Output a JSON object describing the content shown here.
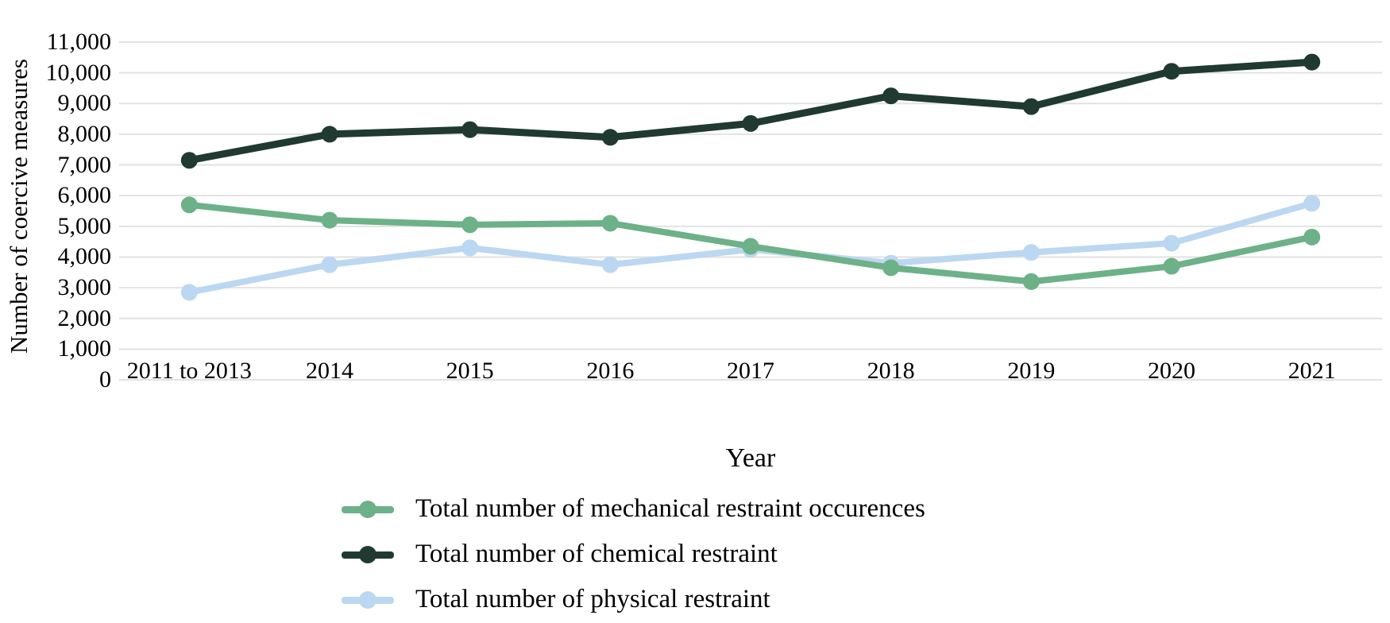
{
  "figure": {
    "background": "#ffffff",
    "gridline_color": "#e2e2e2"
  },
  "chart_data": {
    "type": "line",
    "title": "",
    "xlabel": "Year",
    "ylabel": "Number of coercive measures",
    "categories": [
      "2011 to 2013",
      "2014",
      "2015",
      "2016",
      "2017",
      "2018",
      "2019",
      "2020",
      "2021"
    ],
    "series": [
      {
        "name": "Total number of mechanical restraint occurences",
        "color": "#6db188",
        "values": [
          5700,
          5200,
          5050,
          5100,
          4350,
          3650,
          3200,
          3700,
          4650
        ]
      },
      {
        "name": "Total number of chemical restraint",
        "color": "#203a31",
        "values": [
          7150,
          8000,
          8150,
          7900,
          8350,
          9250,
          8900,
          10050,
          10350
        ]
      },
      {
        "name": "Total number of physical restraint",
        "color": "#bcd7f1",
        "values": [
          2850,
          3750,
          4300,
          3750,
          4250,
          3800,
          4150,
          4450,
          5750
        ]
      }
    ],
    "draw_order": [
      2,
      0,
      1
    ],
    "ylim": [
      0,
      11000
    ],
    "ytick_step": 1000,
    "ytick_labels": [
      "0",
      "1,000",
      "2,000",
      "3,000",
      "4,000",
      "5,000",
      "6,000",
      "7,000",
      "8,000",
      "9,000",
      "10,000",
      "11,000"
    ],
    "grid": "horizontal",
    "legend_position": "bottom-left"
  }
}
